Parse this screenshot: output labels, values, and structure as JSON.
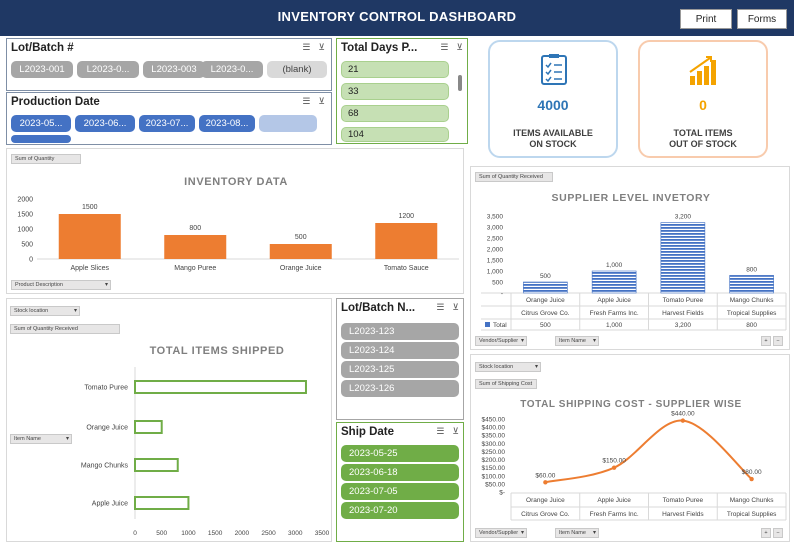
{
  "header": {
    "title": "INVENTORY CONTROL DASHBOARD",
    "print_label": "Print",
    "forms_label": "Forms"
  },
  "slicers": {
    "lot_batch": {
      "title": "Lot/Batch #",
      "items": [
        "L2023-001",
        "L2023-0...",
        "L2023-003",
        "L2023-0...",
        "(blank)"
      ]
    },
    "production_date": {
      "title": "Production Date",
      "items": [
        "2023-05...",
        "2023-06...",
        "2023-07...",
        "2023-08...",
        ""
      ]
    },
    "total_days": {
      "title": "Total Days P...",
      "items": [
        "21",
        "33",
        "68",
        "104"
      ]
    },
    "lot_batch_n": {
      "title": "Lot/Batch N...",
      "items": [
        "L2023-123",
        "L2023-124",
        "L2023-125",
        "L2023-126"
      ]
    },
    "ship_date": {
      "title": "Ship Date",
      "items": [
        "2023-05-25",
        "2023-06-18",
        "2023-07-05",
        "2023-07-20"
      ]
    }
  },
  "cards": {
    "available": {
      "value": "4000",
      "label1": "ITEMS AVAILABLE",
      "label2": "ON STOCK",
      "accent": "#2e75b6"
    },
    "out": {
      "value": "0",
      "label1": "TOTAL ITEMS",
      "label2": "OUT OF STOCK",
      "accent": "#f4a300"
    }
  },
  "fields": {
    "sum_quantity": "Sum of Quantity",
    "product_description": "Product Description",
    "sum_quantity_received": "Sum of Quantity Received",
    "stock_location": "Stock location",
    "item_name": "Item Name",
    "vendor_supplier": "Vendor/Supplier",
    "sum_shipping_cost": "Sum of Shipping Cost"
  },
  "chart_data": [
    {
      "type": "bar",
      "title": "INVENTORY DATA",
      "categories": [
        "Apple Slices",
        "Mango Puree",
        "Orange Juice",
        "Tomato Sauce"
      ],
      "values": [
        1500,
        800,
        500,
        1200
      ],
      "yticks": [
        "0",
        "500",
        "1000",
        "1500",
        "2000"
      ],
      "ylim": [
        0,
        2000
      ],
      "color": "#ed7d31"
    },
    {
      "type": "bar",
      "title": "TOTAL ITEMS SHIPPED",
      "orientation": "horizontal",
      "categories": [
        "Tomato Puree",
        "Orange Juice",
        "Mango Chunks",
        "Apple Juice"
      ],
      "values": [
        3200,
        500,
        800,
        1000
      ],
      "xticks": [
        "0",
        "500",
        "1000",
        "1500",
        "2000",
        "2500",
        "3000",
        "3500"
      ],
      "xlim": [
        0,
        3500
      ],
      "color": "#70ad47"
    },
    {
      "type": "bar",
      "title": "SUPPLIER LEVEL INVETORY",
      "categories": [
        "Orange Juice",
        "Apple Juice",
        "Tomato Puree",
        "Mango Chunks"
      ],
      "subcategories": [
        "Citrus Grove Co.",
        "Fresh Farms Inc.",
        "Harvest Fields",
        "Tropical Supplies"
      ],
      "values": [
        500,
        1000,
        3200,
        800
      ],
      "labels": [
        "500",
        "1,000",
        "3,200",
        "800"
      ],
      "yticks": [
        "-",
        "500",
        "1,000",
        "1,500",
        "2,000",
        "2,500",
        "3,000",
        "3,500"
      ],
      "ylim": [
        0,
        3500
      ],
      "table_row_label": "Total",
      "color": "#4472c4"
    },
    {
      "type": "line",
      "title": "TOTAL SHIPPING COST - SUPPLIER WISE",
      "categories": [
        "Orange Juice",
        "Apple Juice",
        "Tomato Puree",
        "Mango Chunks"
      ],
      "subcategories": [
        "Citrus Grove Co.",
        "Fresh Farms Inc.",
        "Harvest Fields",
        "Tropical Supplies"
      ],
      "values": [
        60,
        150,
        440,
        80
      ],
      "labels": [
        "$60.00",
        "$150.00",
        "$440.00",
        "$80.00"
      ],
      "yticks": [
        "$-",
        "$50.00",
        "$100.00",
        "$150.00",
        "$200.00",
        "$250.00",
        "$300.00",
        "$350.00",
        "$400.00",
        "$450.00"
      ],
      "ylim": [
        0,
        450
      ],
      "color": "#ed7d31"
    }
  ]
}
